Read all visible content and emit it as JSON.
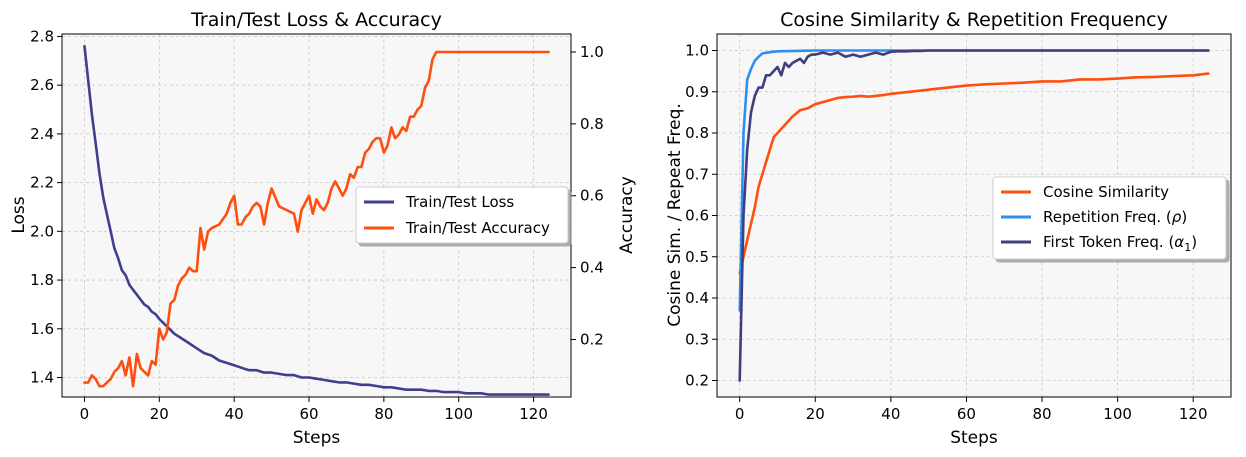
{
  "chart_data": [
    {
      "type": "line",
      "title": "Train/Test Loss & Accuracy",
      "xlabel": "Steps",
      "ylabel": "Loss",
      "ylabel_right": "Accuracy",
      "xlim": [
        -6,
        130
      ],
      "ylim": [
        1.32,
        2.81
      ],
      "ylim_right": [
        0.04,
        1.05
      ],
      "xticks": [
        0,
        20,
        40,
        60,
        80,
        100,
        120
      ],
      "yticks": [
        1.4,
        1.6,
        1.8,
        2.0,
        2.2,
        2.4,
        2.6,
        2.8
      ],
      "yticks_right": [
        0.2,
        0.4,
        0.6,
        0.8,
        1.0
      ],
      "grid": true,
      "legend_position": "center-right",
      "series": [
        {
          "name": "Train/Test Loss",
          "axis": "left",
          "color": "#3f3f8f",
          "x": [
            0,
            1,
            2,
            3,
            4,
            5,
            6,
            7,
            8,
            9,
            10,
            11,
            12,
            13,
            14,
            15,
            16,
            17,
            18,
            19,
            20,
            22,
            24,
            26,
            28,
            30,
            32,
            34,
            36,
            38,
            40,
            42,
            44,
            46,
            48,
            50,
            52,
            54,
            56,
            58,
            60,
            62,
            64,
            66,
            68,
            70,
            72,
            74,
            76,
            78,
            80,
            82,
            84,
            86,
            88,
            90,
            92,
            94,
            96,
            98,
            100,
            102,
            104,
            106,
            108,
            110,
            112,
            114,
            116,
            118,
            120,
            122,
            124
          ],
          "values": [
            2.76,
            2.62,
            2.48,
            2.36,
            2.24,
            2.14,
            2.07,
            2.0,
            1.93,
            1.89,
            1.84,
            1.82,
            1.78,
            1.76,
            1.74,
            1.72,
            1.7,
            1.69,
            1.67,
            1.66,
            1.64,
            1.61,
            1.58,
            1.56,
            1.54,
            1.52,
            1.5,
            1.49,
            1.47,
            1.46,
            1.45,
            1.44,
            1.43,
            1.43,
            1.42,
            1.42,
            1.415,
            1.41,
            1.41,
            1.4,
            1.4,
            1.395,
            1.39,
            1.385,
            1.38,
            1.38,
            1.375,
            1.37,
            1.37,
            1.365,
            1.36,
            1.36,
            1.355,
            1.35,
            1.35,
            1.35,
            1.345,
            1.345,
            1.34,
            1.34,
            1.34,
            1.335,
            1.335,
            1.335,
            1.33,
            1.33,
            1.33,
            1.33,
            1.33,
            1.33,
            1.33,
            1.33,
            1.33
          ]
        },
        {
          "name": "Train/Test Accuracy",
          "axis": "right",
          "color": "#ff4f0f",
          "x": [
            0,
            1,
            2,
            3,
            4,
            5,
            6,
            7,
            8,
            9,
            10,
            11,
            12,
            13,
            14,
            15,
            16,
            17,
            18,
            19,
            20,
            21,
            22,
            23,
            24,
            25,
            26,
            27,
            28,
            29,
            30,
            31,
            32,
            33,
            34,
            36,
            38,
            39,
            40,
            41,
            42,
            43,
            44,
            45,
            46,
            47,
            48,
            49,
            50,
            52,
            54,
            56,
            57,
            58,
            59,
            60,
            61,
            62,
            63,
            64,
            65,
            66,
            67,
            68,
            69,
            70,
            71,
            72,
            73,
            74,
            75,
            76,
            77,
            78,
            79,
            80,
            81,
            82,
            83,
            84,
            85,
            86,
            87,
            88,
            89,
            90,
            91,
            92,
            93,
            94,
            95,
            96,
            97,
            98,
            100,
            110,
            120,
            124
          ],
          "values": [
            0.08,
            0.08,
            0.1,
            0.09,
            0.07,
            0.07,
            0.08,
            0.09,
            0.11,
            0.12,
            0.14,
            0.1,
            0.15,
            0.07,
            0.16,
            0.12,
            0.11,
            0.1,
            0.14,
            0.13,
            0.23,
            0.2,
            0.22,
            0.3,
            0.31,
            0.35,
            0.37,
            0.38,
            0.4,
            0.39,
            0.39,
            0.51,
            0.45,
            0.5,
            0.51,
            0.52,
            0.55,
            0.58,
            0.6,
            0.52,
            0.52,
            0.54,
            0.55,
            0.57,
            0.58,
            0.57,
            0.52,
            0.58,
            0.62,
            0.57,
            0.56,
            0.55,
            0.5,
            0.56,
            0.58,
            0.6,
            0.55,
            0.59,
            0.57,
            0.56,
            0.58,
            0.62,
            0.64,
            0.62,
            0.6,
            0.62,
            0.66,
            0.65,
            0.68,
            0.68,
            0.72,
            0.73,
            0.75,
            0.76,
            0.76,
            0.72,
            0.74,
            0.79,
            0.76,
            0.77,
            0.79,
            0.78,
            0.82,
            0.82,
            0.84,
            0.85,
            0.9,
            0.92,
            0.98,
            1.0,
            1.0,
            1.0,
            1.0,
            1.0,
            1.0,
            1.0,
            1.0,
            1.0
          ]
        }
      ]
    },
    {
      "type": "line",
      "title": "Cosine Similarity & Repetition Frequency",
      "xlabel": "Steps",
      "ylabel": "Cosine Sim. / Repeat Freq.",
      "xlim": [
        -6,
        130
      ],
      "ylim": [
        0.16,
        1.04
      ],
      "xticks": [
        0,
        20,
        40,
        60,
        80,
        100,
        120
      ],
      "yticks": [
        0.2,
        0.3,
        0.4,
        0.5,
        0.6,
        0.7,
        0.8,
        0.9,
        1.0
      ],
      "grid": true,
      "legend_position": "center-right",
      "series": [
        {
          "name": "Cosine Similarity",
          "color": "#ff4f0f",
          "x": [
            0,
            1,
            2,
            3,
            4,
            5,
            6,
            7,
            8,
            9,
            10,
            12,
            14,
            16,
            18,
            20,
            22,
            24,
            26,
            28,
            30,
            32,
            34,
            36,
            38,
            40,
            45,
            50,
            55,
            60,
            65,
            70,
            75,
            80,
            85,
            90,
            95,
            100,
            105,
            110,
            115,
            120,
            124
          ],
          "values": [
            0.46,
            0.5,
            0.54,
            0.58,
            0.62,
            0.67,
            0.7,
            0.73,
            0.76,
            0.79,
            0.8,
            0.82,
            0.84,
            0.855,
            0.86,
            0.87,
            0.875,
            0.88,
            0.885,
            0.887,
            0.888,
            0.89,
            0.888,
            0.89,
            0.892,
            0.895,
            0.9,
            0.905,
            0.91,
            0.915,
            0.918,
            0.92,
            0.922,
            0.925,
            0.925,
            0.93,
            0.93,
            0.932,
            0.935,
            0.936,
            0.938,
            0.94,
            0.944
          ]
        },
        {
          "name": "Repetition Freq. (ρ)",
          "legend_main": "Repetition Freq. (",
          "legend_symbol": "ρ",
          "legend_tail": ")",
          "color": "#2f8fef",
          "x": [
            0,
            1,
            2,
            3,
            4,
            5,
            6,
            8,
            10,
            15,
            20,
            30,
            40,
            124
          ],
          "values": [
            0.37,
            0.8,
            0.93,
            0.955,
            0.975,
            0.985,
            0.993,
            0.996,
            0.998,
            0.999,
            1.0,
            1.0,
            1.0,
            1.0
          ]
        },
        {
          "name": "First Token Freq. (α1)",
          "legend_main": "First Token Freq. (",
          "legend_symbol": "α",
          "legend_sub": "1",
          "legend_tail": ")",
          "color": "#3f3f7f",
          "x": [
            0,
            1,
            2,
            3,
            4,
            5,
            6,
            7,
            8,
            9,
            10,
            11,
            12,
            13,
            14,
            15,
            16,
            17,
            18,
            19,
            20,
            22,
            24,
            26,
            28,
            30,
            32,
            34,
            36,
            38,
            40,
            42,
            44,
            46,
            48,
            50,
            55,
            60,
            70,
            80,
            90,
            100,
            110,
            124
          ],
          "values": [
            0.2,
            0.6,
            0.76,
            0.85,
            0.89,
            0.91,
            0.91,
            0.94,
            0.94,
            0.95,
            0.96,
            0.94,
            0.97,
            0.96,
            0.97,
            0.975,
            0.98,
            0.97,
            0.985,
            0.99,
            0.99,
            0.995,
            0.99,
            0.995,
            0.985,
            0.99,
            0.985,
            0.99,
            0.995,
            0.99,
            0.997,
            0.998,
            0.998,
            0.999,
            0.999,
            1.0,
            1.0,
            1.0,
            1.0,
            1.0,
            1.0,
            1.0,
            1.0,
            1.0
          ]
        }
      ]
    }
  ]
}
